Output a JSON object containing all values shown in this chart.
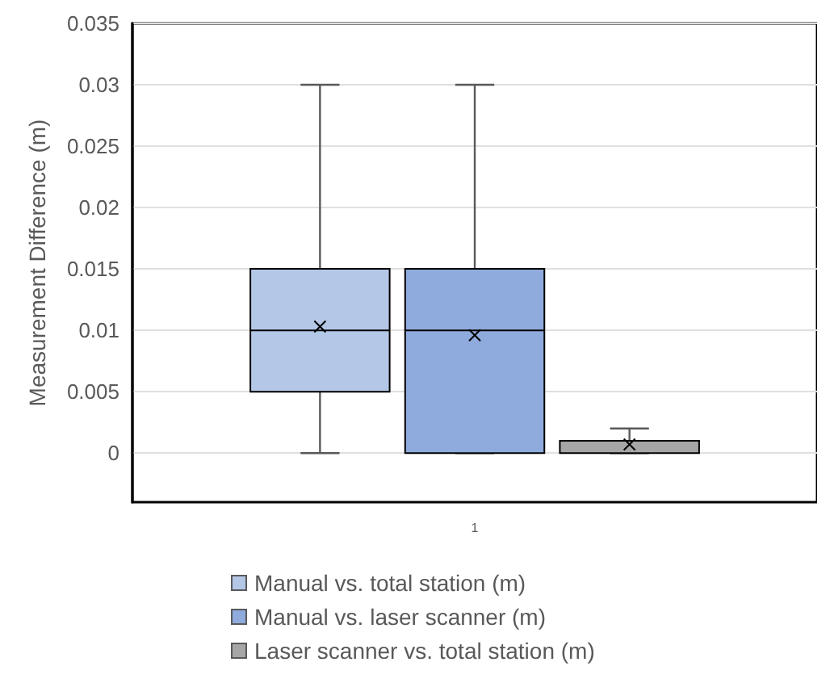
{
  "chart_data": {
    "type": "box",
    "ylabel": "Measurement Difference (m)",
    "categories": [
      "1"
    ],
    "ylim": [
      -0.004,
      0.035
    ],
    "yticks": [
      0,
      0.005,
      0.01,
      0.015,
      0.02,
      0.025,
      0.03,
      0.035
    ],
    "grid": "y",
    "legend": "bottom",
    "series": [
      {
        "name": "Manual vs. total station (m)",
        "color": "#b4c7e7",
        "boxes": [
          {
            "low": 0,
            "q1": 0.005,
            "median": 0.01,
            "q3": 0.015,
            "high": 0.03,
            "mean": 0.0103
          }
        ]
      },
      {
        "name": "Manual vs. laser scanner (m)",
        "color": "#8faadc",
        "boxes": [
          {
            "low": 0,
            "q1": 0,
            "median": 0.01,
            "q3": 0.015,
            "high": 0.03,
            "mean": 0.0096
          }
        ]
      },
      {
        "name": "Laser scanner vs. total station (m)",
        "color": "#a6a6a6",
        "boxes": [
          {
            "low": 0,
            "q1": 0,
            "median": 0.001,
            "q3": 0.001,
            "high": 0.002,
            "mean": 0.0007
          }
        ]
      }
    ]
  }
}
